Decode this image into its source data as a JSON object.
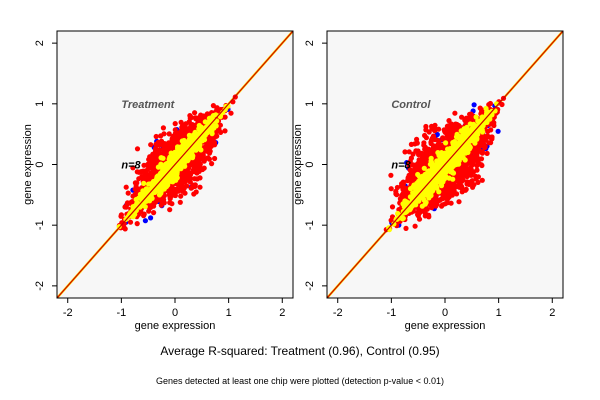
{
  "figure": {
    "summary": "Average R-squared: Treatment (0.96), Control (0.95)",
    "footnote": "Genes detected at least one chip were plotted (detection p-value < 0.01)"
  },
  "colors": {
    "blue": "#0000ff",
    "red": "#ff0000",
    "yellow": "#ffff00",
    "panel_bg": "#f7f7f7",
    "diag_red": "#cc0000",
    "diag_yellow": "#ffe000",
    "annotation": "#555555"
  },
  "chart_data": [
    {
      "type": "scatter",
      "name": "treatment",
      "title": "Treatment",
      "annotation": "n=8",
      "xlabel": "gene expression",
      "ylabel": "gene expression",
      "xlim": [
        -2.2,
        2.2
      ],
      "ylim": [
        -2.2,
        2.2
      ],
      "xticks": [
        "-2",
        "-1",
        "0",
        "1",
        "2"
      ],
      "yticks": [
        "-2",
        "-1",
        "0",
        "1",
        "2"
      ],
      "reference_lines": [
        {
          "slope": 1,
          "intercept": 0
        }
      ],
      "series": [
        {
          "name": "blue",
          "color": "#0000ff",
          "count": 90,
          "range": [
            -1.15,
            1.15
          ],
          "spread": 0.55
        },
        {
          "name": "red",
          "color": "#ff0000",
          "count": 1400,
          "range": [
            -1.15,
            1.15
          ],
          "spread": 0.48
        },
        {
          "name": "yellow",
          "color": "#ffff00",
          "count": 650,
          "range": [
            -1.12,
            1.12
          ],
          "spread": 0.18
        }
      ]
    },
    {
      "type": "scatter",
      "name": "control",
      "title": "Control",
      "annotation": "n=8",
      "xlabel": "gene expression",
      "ylabel": "gene expression",
      "xlim": [
        -2.2,
        2.2
      ],
      "ylim": [
        -2.2,
        2.2
      ],
      "xticks": [
        "-2",
        "-1",
        "0",
        "1",
        "2"
      ],
      "yticks": [
        "-2",
        "-1",
        "0",
        "1",
        "2"
      ],
      "reference_lines": [
        {
          "slope": 1,
          "intercept": 0
        }
      ],
      "series": [
        {
          "name": "blue",
          "color": "#0000ff",
          "count": 110,
          "range": [
            -1.15,
            1.15
          ],
          "spread": 0.58
        },
        {
          "name": "red",
          "color": "#ff0000",
          "count": 1700,
          "range": [
            -1.15,
            1.15
          ],
          "spread": 0.55
        },
        {
          "name": "yellow",
          "color": "#ffff00",
          "count": 750,
          "range": [
            -1.12,
            1.12
          ],
          "spread": 0.22
        }
      ]
    }
  ]
}
